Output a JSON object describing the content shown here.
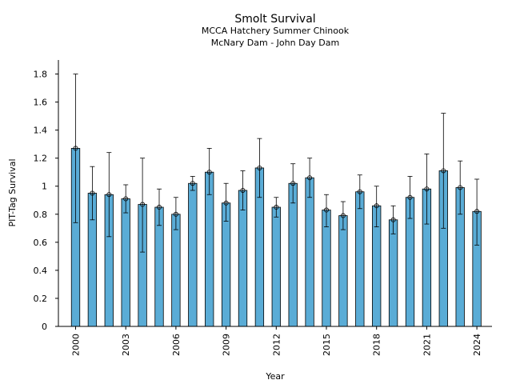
{
  "chart_data": {
    "type": "bar",
    "title": "Smolt Survival",
    "subtitle_lines": [
      "MCCA Hatchery Summer Chinook",
      "McNary Dam - John Day Dam"
    ],
    "xlabel": "Year",
    "ylabel": "PIT-Tag Survival",
    "x": [
      2000,
      2001,
      2002,
      2003,
      2004,
      2005,
      2006,
      2007,
      2008,
      2009,
      2010,
      2011,
      2012,
      2013,
      2014,
      2015,
      2016,
      2017,
      2018,
      2019,
      2020,
      2021,
      2022,
      2023,
      2024
    ],
    "values": [
      1.27,
      0.95,
      0.94,
      0.91,
      0.87,
      0.85,
      0.8,
      1.02,
      1.1,
      0.88,
      0.97,
      1.13,
      0.85,
      1.02,
      1.06,
      0.83,
      0.79,
      0.96,
      0.86,
      0.76,
      0.92,
      0.98,
      1.11,
      0.99,
      0.82
    ],
    "error_low": [
      0.74,
      0.76,
      0.64,
      0.81,
      0.53,
      0.72,
      0.69,
      0.97,
      0.94,
      0.75,
      0.83,
      0.92,
      0.78,
      0.88,
      0.92,
      0.71,
      0.69,
      0.84,
      0.71,
      0.66,
      0.77,
      0.73,
      0.7,
      0.8,
      0.58
    ],
    "error_high": [
      1.8,
      1.14,
      1.24,
      1.01,
      1.2,
      0.98,
      0.92,
      1.07,
      1.27,
      1.02,
      1.11,
      1.34,
      0.92,
      1.16,
      1.2,
      0.94,
      0.89,
      1.08,
      1.0,
      0.86,
      1.07,
      1.23,
      1.52,
      1.18,
      1.05
    ],
    "xticks": [
      "2000",
      "2003",
      "2006",
      "2009",
      "2012",
      "2015",
      "2018",
      "2021",
      "2024"
    ],
    "yticks": [
      "0",
      "0.2",
      "0.4",
      "0.6",
      "0.8",
      "1",
      "1.2",
      "1.4",
      "1.6",
      "1.8"
    ],
    "ylim": [
      0,
      1.9
    ],
    "bar_color": "#5aacd6",
    "grid": false,
    "legend": "none"
  }
}
